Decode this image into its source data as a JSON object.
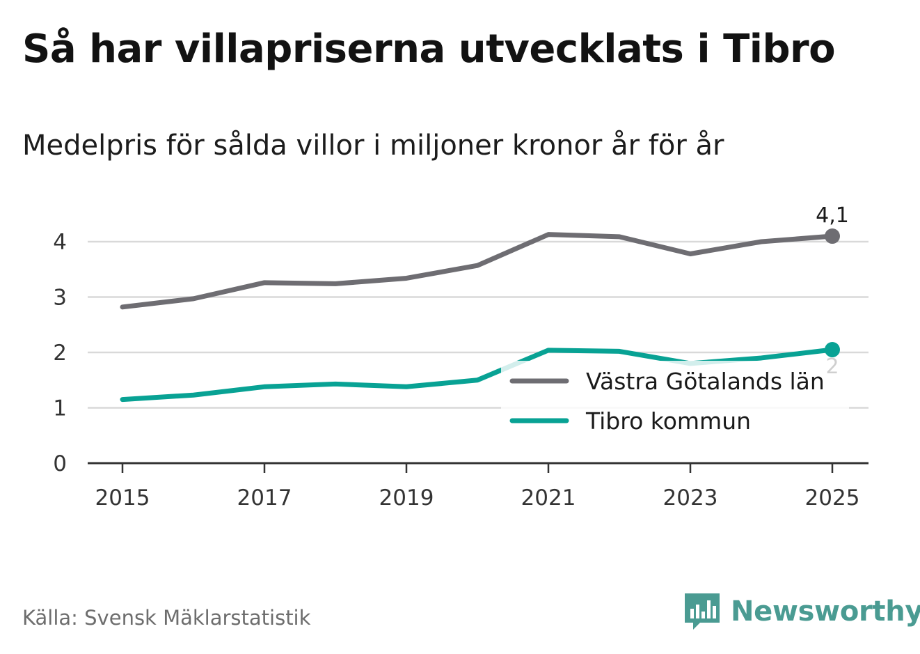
{
  "header": {
    "title": "Så har villapriserna utvecklats i Tibro",
    "subtitle": "Medelpris för sålda villor i miljoner kronor år för år"
  },
  "footer": {
    "source": "Källa: Svensk Mäklarstatistik",
    "brand": "Newsworthy",
    "brand_icon": "bar-chart-speech-bubble-icon"
  },
  "colors": {
    "region_line": "#6e6d72",
    "kommun_line": "#08a294",
    "gridline": "#d9d9d9",
    "axis": "#333333",
    "brand": "#4a9b92"
  },
  "chart_data": {
    "type": "line",
    "title": "Så har villapriserna utvecklats i Tibro",
    "subtitle": "Medelpris för sålda villor i miljoner kronor år för år",
    "xlabel": "",
    "ylabel": "",
    "x": [
      2015,
      2016,
      2017,
      2018,
      2019,
      2020,
      2021,
      2022,
      2023,
      2024,
      2025
    ],
    "x_tick_labels": [
      "2015",
      "2017",
      "2019",
      "2021",
      "2023",
      "2025"
    ],
    "y_tick_labels": [
      "0",
      "1",
      "2",
      "3",
      "4"
    ],
    "ylim": [
      0,
      4.3
    ],
    "grid": true,
    "legend_position": "bottom-right",
    "series": [
      {
        "name": "Västra Götalands län",
        "color": "#6e6d72",
        "values": [
          2.82,
          2.97,
          3.26,
          3.24,
          3.34,
          3.57,
          4.13,
          4.09,
          3.78,
          4.0,
          4.1
        ],
        "end_label": "4,1"
      },
      {
        "name": "Tibro kommun",
        "color": "#08a294",
        "values": [
          1.15,
          1.23,
          1.38,
          1.43,
          1.38,
          1.5,
          2.04,
          2.02,
          1.8,
          1.9,
          2.05
        ],
        "end_label": "2"
      }
    ]
  }
}
